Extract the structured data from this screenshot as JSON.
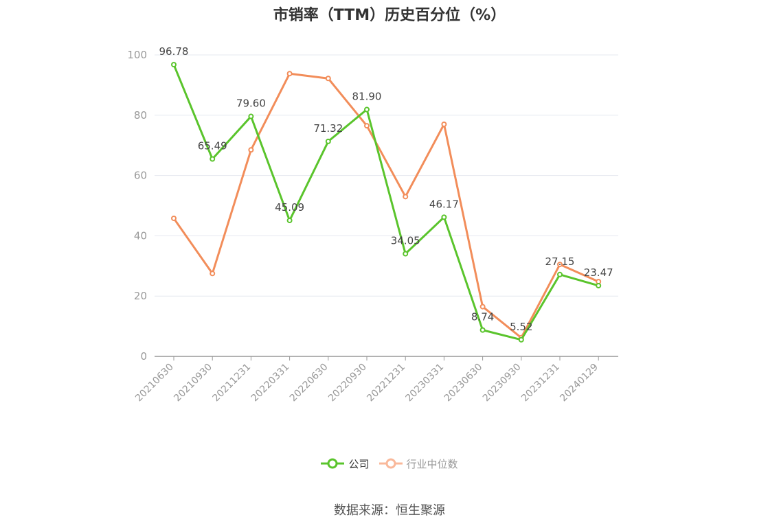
{
  "chart_data": {
    "type": "line",
    "title": "市销率（TTM）历史百分位（%）",
    "categories": [
      "20210630",
      "20210930",
      "20211231",
      "20220331",
      "20220630",
      "20220930",
      "20221231",
      "20230331",
      "20230630",
      "20230930",
      "20231231",
      "20240129"
    ],
    "series": [
      {
        "name": "公司",
        "values": [
          96.78,
          65.49,
          79.6,
          45.09,
          71.32,
          81.9,
          34.05,
          46.17,
          8.74,
          5.52,
          27.15,
          23.47
        ],
        "labels": [
          "96.78",
          "65.49",
          "79.60",
          "45.09",
          "71.32",
          "81.90",
          "34.05",
          "46.17",
          "8.74",
          "5.52",
          "27.15",
          "23.47"
        ],
        "color": "#5ac42c"
      },
      {
        "name": "行业中位数",
        "values": [
          45.8,
          27.5,
          68.5,
          93.8,
          92.2,
          76.5,
          53.0,
          77.0,
          16.5,
          6.2,
          30.5,
          24.8
        ],
        "color": "#f28d5a"
      }
    ],
    "ylim": [
      0,
      100
    ],
    "yticks": [
      "0",
      "20",
      "40",
      "60",
      "80",
      "100"
    ],
    "grid": true,
    "legend_position": "bottom",
    "legend_colors": {
      "公司": "#5ac42c",
      "行业中位数": "#f9b89a"
    },
    "source": "数据来源：恒生聚源"
  }
}
